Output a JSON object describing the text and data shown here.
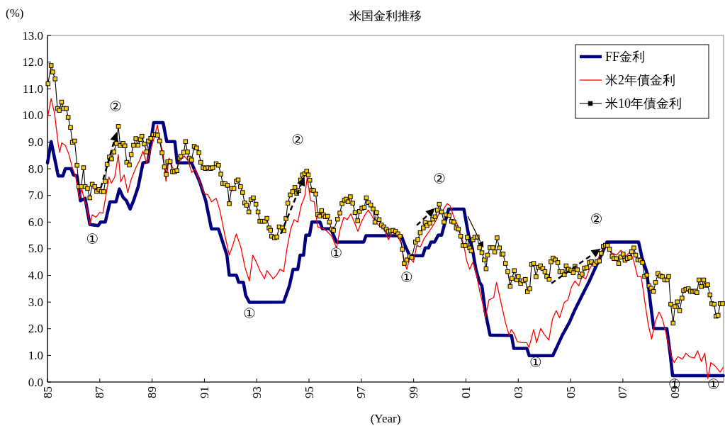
{
  "chart_data": {
    "type": "line",
    "title": "米国金利推移",
    "ylabel": "(%)",
    "xlabel": "(Year)",
    "xlim": [
      1985,
      2010.85
    ],
    "ylim": [
      0,
      13
    ],
    "xticks": [
      {
        "value": 1985,
        "label": "85"
      },
      {
        "value": 1987,
        "label": "87"
      },
      {
        "value": 1989,
        "label": "89"
      },
      {
        "value": 1991,
        "label": "91"
      },
      {
        "value": 1993,
        "label": "93"
      },
      {
        "value": 1995,
        "label": "95"
      },
      {
        "value": 1997,
        "label": "97"
      },
      {
        "value": 1999,
        "label": "99"
      },
      {
        "value": 2001,
        "label": "01"
      },
      {
        "value": 2003,
        "label": "03"
      },
      {
        "value": 2005,
        "label": "05"
      },
      {
        "value": 2007,
        "label": "07"
      },
      {
        "value": 2009,
        "label": "09"
      }
    ],
    "yticks": [
      {
        "value": 0,
        "label": "0.0"
      },
      {
        "value": 1,
        "label": "1.0"
      },
      {
        "value": 2,
        "label": "2.0"
      },
      {
        "value": 3,
        "label": "3.0"
      },
      {
        "value": 4,
        "label": "4.0"
      },
      {
        "value": 5,
        "label": "5.0"
      },
      {
        "value": 6,
        "label": "6.0"
      },
      {
        "value": 7,
        "label": "7.0"
      },
      {
        "value": 8,
        "label": "8.0"
      },
      {
        "value": 9,
        "label": "9.0"
      },
      {
        "value": 10,
        "label": "10.0"
      },
      {
        "value": 11,
        "label": "11.0"
      },
      {
        "value": 12,
        "label": "12.0"
      },
      {
        "value": 13,
        "label": "13.0"
      }
    ],
    "legend": "top right",
    "grid": false,
    "series": [
      {
        "name": "FF金利",
        "color": "#000080",
        "marker": "none",
        "x": [
          1985.0,
          1985.14,
          1985.32,
          1985.41,
          1985.59,
          1985.68,
          1985.9,
          1985.99,
          1986.13,
          1986.26,
          1986.44,
          1986.62,
          1986.94,
          1987.03,
          1987.21,
          1987.39,
          1987.62,
          1987.75,
          1987.89,
          1988.02,
          1988.16,
          1988.29,
          1988.47,
          1988.65,
          1988.84,
          1989.06,
          1989.42,
          1989.56,
          1989.87,
          1989.96,
          1990.51,
          1990.82,
          1991.05,
          1991.27,
          1991.54,
          1991.86,
          1991.95,
          1992.22,
          1992.31,
          1992.49,
          1992.58,
          1992.72,
          1994.03,
          1994.25,
          1994.39,
          1994.57,
          1994.66,
          1994.79,
          1994.88,
          1995.02,
          1995.11,
          1995.42,
          1995.51,
          1995.83,
          1996.05,
          1997.09,
          1997.18,
          1998.53,
          1998.67,
          1998.85,
          1999.35,
          1999.44,
          1999.57,
          1999.66,
          1999.8,
          1999.94,
          2000.07,
          2000.2,
          2000.34,
          2000.92,
          2001.1,
          2001.24,
          2001.38,
          2001.52,
          2001.61,
          2001.74,
          2001.92,
          2002.74,
          2002.83,
          2003.33,
          2003.42,
          2004.32,
          2004.45,
          2004.68,
          2004.95,
          2005.17,
          2005.44,
          2005.72,
          2005.94,
          2006.17,
          2006.39,
          2007.6,
          2007.73,
          2007.91,
          2008.05,
          2008.18,
          2008.68,
          2008.81,
          2008.9,
          2010.84
        ],
        "values": [
          8.22,
          9.02,
          8.17,
          7.73,
          7.73,
          8.0,
          8.0,
          7.77,
          7.73,
          6.8,
          6.89,
          5.91,
          5.87,
          6.0,
          6.0,
          6.76,
          6.76,
          7.24,
          6.93,
          6.8,
          6.49,
          6.8,
          7.33,
          8.22,
          8.26,
          9.73,
          9.73,
          9.02,
          9.02,
          8.22,
          8.22,
          7.51,
          6.8,
          5.74,
          5.74,
          4.76,
          4.01,
          4.01,
          3.74,
          3.74,
          3.25,
          2.99,
          3.0,
          3.61,
          4.23,
          4.23,
          4.76,
          4.76,
          5.51,
          5.51,
          6.0,
          6.0,
          5.75,
          5.75,
          5.25,
          5.25,
          5.49,
          5.49,
          5.12,
          4.74,
          4.74,
          5.03,
          5.03,
          5.25,
          5.25,
          5.51,
          5.51,
          6.0,
          6.49,
          6.49,
          5.51,
          5.03,
          4.23,
          3.74,
          3.61,
          2.63,
          1.76,
          1.75,
          1.26,
          1.26,
          0.99,
          0.99,
          1.26,
          1.75,
          2.23,
          2.72,
          3.25,
          3.79,
          4.27,
          4.76,
          5.25,
          5.25,
          4.67,
          4.14,
          2.99,
          2.01,
          2.01,
          1.04,
          0.24,
          0.24
        ]
      },
      {
        "name": "米2年債金利",
        "color": "#ff0000",
        "marker": "none",
        "x": [
          1985.0,
          1985.14,
          1985.27,
          1985.41,
          1985.47,
          1985.54,
          1985.68,
          1985.81,
          1985.95,
          1986.08,
          1986.22,
          1986.31,
          1986.4,
          1986.53,
          1986.62,
          1986.71,
          1986.85,
          1986.99,
          1987.12,
          1987.26,
          1987.35,
          1987.44,
          1987.57,
          1987.71,
          1987.8,
          1987.93,
          1988.07,
          1988.2,
          1988.38,
          1988.52,
          1988.65,
          1988.79,
          1988.97,
          1989.11,
          1989.2,
          1989.33,
          1989.42,
          1989.53,
          1989.65,
          1989.78,
          1989.92,
          1990.05,
          1990.23,
          1990.37,
          1990.52,
          1990.64,
          1990.82,
          1991.0,
          1991.14,
          1991.27,
          1991.45,
          1991.59,
          1991.77,
          1991.95,
          1992.08,
          1992.22,
          1992.4,
          1992.56,
          1992.72,
          1992.85,
          1992.99,
          1993.12,
          1993.3,
          1993.39,
          1993.57,
          1993.62,
          1993.76,
          1993.89,
          1994.03,
          1994.16,
          1994.3,
          1994.43,
          1994.57,
          1994.7,
          1994.84,
          1994.93,
          1995.06,
          1995.2,
          1995.33,
          1995.51,
          1995.69,
          1995.87,
          1996.05,
          1996.19,
          1996.33,
          1996.46,
          1996.6,
          1996.73,
          1996.87,
          1997.0,
          1997.14,
          1997.27,
          1997.41,
          1997.55,
          1997.68,
          1997.86,
          1998.04,
          1998.18,
          1998.36,
          1998.53,
          1998.62,
          1998.74,
          1998.85,
          1998.99,
          1999.12,
          1999.26,
          1999.4,
          1999.53,
          1999.71,
          1999.85,
          1999.99,
          2000.12,
          2000.28,
          2000.39,
          2000.54,
          2000.67,
          2000.8,
          2000.94,
          2001.02,
          2001.14,
          2001.26,
          2001.38,
          2001.52,
          2001.65,
          2001.74,
          2001.88,
          2002.06,
          2002.17,
          2002.28,
          2002.51,
          2002.65,
          2002.73,
          2002.83,
          2002.96,
          2003.14,
          2003.32,
          2003.41,
          2003.59,
          2003.7,
          2003.86,
          2003.99,
          2004.17,
          2004.31,
          2004.45,
          2004.58,
          2004.76,
          2004.9,
          2005.03,
          2005.17,
          2005.31,
          2005.44,
          2005.58,
          2005.72,
          2005.85,
          2006.03,
          2006.21,
          2006.39,
          2006.57,
          2006.75,
          2006.93,
          2007.11,
          2007.29,
          2007.43,
          2007.56,
          2007.7,
          2007.83,
          2007.97,
          2008.1,
          2008.24,
          2008.38,
          2008.51,
          2008.65,
          2008.83,
          2008.96,
          2009.1,
          2009.28,
          2009.41,
          2009.55,
          2009.73,
          2009.86,
          2010.0,
          2010.13,
          2010.25,
          2010.36,
          2010.54,
          2010.72,
          2010.83
        ],
        "values": [
          9.9,
          10.63,
          10.08,
          8.93,
          8.62,
          8.97,
          8.88,
          8.57,
          8.04,
          7.69,
          6.89,
          7.24,
          6.89,
          6.45,
          5.91,
          6.27,
          6.18,
          6.36,
          6.34,
          7.15,
          7.69,
          7.46,
          7.69,
          8.53,
          7.51,
          7.77,
          7.11,
          7.6,
          8.04,
          8.31,
          8.66,
          8.22,
          8.79,
          9.28,
          9.64,
          8.93,
          8.57,
          7.53,
          8.4,
          8.04,
          7.91,
          8.31,
          8.48,
          8.31,
          7.86,
          8.0,
          7.51,
          7.07,
          7.02,
          6.76,
          6.89,
          6.45,
          5.56,
          4.76,
          5.12,
          5.56,
          5.03,
          4.27,
          3.79,
          4.76,
          4.49,
          4.18,
          3.87,
          4.18,
          3.96,
          3.87,
          4.01,
          4.23,
          4.14,
          5.03,
          5.74,
          6.09,
          6.0,
          6.62,
          6.98,
          7.69,
          6.8,
          6.76,
          5.82,
          5.78,
          5.65,
          5.47,
          5.03,
          5.74,
          6.18,
          6.09,
          6.31,
          6.0,
          5.65,
          6.0,
          6.27,
          6.45,
          6.22,
          6.0,
          5.87,
          5.74,
          5.34,
          5.65,
          5.51,
          5.2,
          4.58,
          4.23,
          4.67,
          4.49,
          5.12,
          5.07,
          5.38,
          5.56,
          5.82,
          6.05,
          6.36,
          6.45,
          6.69,
          6.62,
          6.18,
          5.91,
          5.56,
          5.03,
          4.58,
          4.23,
          4.49,
          4.14,
          3.43,
          2.9,
          2.41,
          3.08,
          3.17,
          3.74,
          3.25,
          2.23,
          1.75,
          1.97,
          1.84,
          1.52,
          1.48,
          1.48,
          1.3,
          1.97,
          1.48,
          2.01,
          1.79,
          1.57,
          2.37,
          2.68,
          2.41,
          2.99,
          3.08,
          3.56,
          3.79,
          3.61,
          3.96,
          3.87,
          4.23,
          4.45,
          4.58,
          4.94,
          5.12,
          4.85,
          4.76,
          4.94,
          4.72,
          4.89,
          4.49,
          3.96,
          3.96,
          3.08,
          2.15,
          1.61,
          2.28,
          2.63,
          2.37,
          1.84,
          1.04,
          0.73,
          0.95,
          0.86,
          1.08,
          0.95,
          0.9,
          1.17,
          0.77,
          1.08,
          0.13,
          0.73,
          0.59,
          0.37,
          0.55
        ]
      },
      {
        "name": "米10年債金利",
        "color": "#000000",
        "marker": "square",
        "x": [
          1985.02,
          1985.14,
          1985.2,
          1985.29,
          1985.38,
          1985.45,
          1985.54,
          1985.61,
          1985.72,
          1985.79,
          1985.88,
          1985.95,
          1986.04,
          1986.13,
          1986.2,
          1986.29,
          1986.38,
          1986.44,
          1986.53,
          1986.62,
          1986.71,
          1986.81,
          1986.88,
          1986.97,
          1987.06,
          1987.15,
          1987.21,
          1987.28,
          1987.37,
          1987.45,
          1987.54,
          1987.63,
          1987.71,
          1987.78,
          1987.89,
          1987.96,
          1988.03,
          1988.13,
          1988.2,
          1988.29,
          1988.38,
          1988.46,
          1988.55,
          1988.61,
          1988.7,
          1988.79,
          1988.86,
          1988.95,
          1989.04,
          1989.13,
          1989.21,
          1989.29,
          1989.38,
          1989.47,
          1989.54,
          1989.6,
          1989.69,
          1989.78,
          1989.86,
          1989.95,
          1990.04,
          1990.1,
          1990.21,
          1990.28,
          1990.35,
          1990.42,
          1990.51,
          1990.61,
          1990.7,
          1990.79,
          1990.86,
          1990.95,
          1991.04,
          1991.14,
          1991.24,
          1991.32,
          1991.45,
          1991.54,
          1991.63,
          1991.7,
          1991.79,
          1991.88,
          1991.95,
          1992.04,
          1992.13,
          1992.22,
          1992.29,
          1992.38,
          1992.46,
          1992.54,
          1992.61,
          1992.7,
          1992.78,
          1992.87,
          1992.97,
          1993.05,
          1993.12,
          1993.21,
          1993.3,
          1993.39,
          1993.47,
          1993.53,
          1993.57,
          1993.68,
          1993.77,
          1993.86,
          1993.98,
          1994.04,
          1994.12,
          1994.19,
          1994.28,
          1994.37,
          1994.46,
          1994.53,
          1994.61,
          1994.68,
          1994.75,
          1994.84,
          1994.91,
          1994.97,
          1995.03,
          1995.11,
          1995.18,
          1995.26,
          1995.33,
          1995.41,
          1995.48,
          1995.55,
          1995.62,
          1995.71,
          1995.78,
          1995.86,
          1995.94,
          1996.09,
          1996.18,
          1996.26,
          1996.35,
          1996.42,
          1996.49,
          1996.58,
          1996.67,
          1996.76,
          1996.86,
          1996.93,
          1997.02,
          1997.11,
          1997.19,
          1997.27,
          1997.36,
          1997.45,
          1997.52,
          1997.58,
          1997.68,
          1997.77,
          1997.86,
          1997.95,
          1998.03,
          1998.12,
          1998.21,
          1998.31,
          1998.4,
          1998.48,
          1998.57,
          1998.64,
          1998.74,
          1998.85,
          1998.93,
          1999.07,
          1999.16,
          1999.25,
          1999.37,
          1999.44,
          1999.51,
          1999.62,
          1999.73,
          1999.82,
          1999.91,
          1999.98,
          2000.07,
          2000.16,
          2000.24,
          2000.36,
          2000.45,
          2000.54,
          2000.63,
          2000.71,
          2000.8,
          2000.89,
          2000.97,
          2001.05,
          2001.14,
          2001.2,
          2001.27,
          2001.34,
          2001.43,
          2001.52,
          2001.61,
          2001.7,
          2001.77,
          2001.83,
          2001.92,
          2002.03,
          2002.1,
          2002.19,
          2002.28,
          2002.37,
          2002.42,
          2002.51,
          2002.6,
          2002.69,
          2002.76,
          2002.85,
          2002.94,
          2003.0,
          2003.09,
          2003.18,
          2003.27,
          2003.35,
          2003.44,
          2003.51,
          2003.59,
          2003.68,
          2003.76,
          2003.85,
          2003.94,
          2004.02,
          2004.09,
          2004.18,
          2004.25,
          2004.33,
          2004.42,
          2004.51,
          2004.59,
          2004.68,
          2004.76,
          2004.83,
          2004.92,
          2005.01,
          2005.1,
          2005.17,
          2005.26,
          2005.35,
          2005.44,
          2005.53,
          2005.62,
          2005.72,
          2005.8,
          2005.92,
          2006.01,
          2006.1,
          2006.17,
          2006.25,
          2006.33,
          2006.41,
          2006.49,
          2006.59,
          2006.66,
          2006.75,
          2006.84,
          2006.92,
          2007.01,
          2007.08,
          2007.17,
          2007.26,
          2007.33,
          2007.42,
          2007.49,
          2007.57,
          2007.66,
          2007.75,
          2007.83,
          2007.92,
          2008.0,
          2008.08,
          2008.17,
          2008.25,
          2008.34,
          2008.43,
          2008.51,
          2008.6,
          2008.69,
          2008.75,
          2008.83,
          2008.92,
          2008.99,
          2009.08,
          2009.17,
          2009.26,
          2009.32,
          2009.41,
          2009.5,
          2009.58,
          2009.67,
          2009.76,
          2009.83,
          2009.91,
          2010.0,
          2010.09,
          2010.17,
          2010.24,
          2010.33,
          2010.4,
          2010.49,
          2010.56,
          2010.64,
          2010.72,
          2010.81
        ],
        "values": [
          11.19,
          11.87,
          11.63,
          11.37,
          10.26,
          10.19,
          10.5,
          10.26,
          10.26,
          9.93,
          9.55,
          8.99,
          9.04,
          8.13,
          7.33,
          7.33,
          8.04,
          7.33,
          7.26,
          6.91,
          7.42,
          7.33,
          7.15,
          7.22,
          7.15,
          7.14,
          7.53,
          8.17,
          8.44,
          8.37,
          8.63,
          8.95,
          9.59,
          8.87,
          8.95,
          8.86,
          8.24,
          8.14,
          8.53,
          8.88,
          9.13,
          8.88,
          9.1,
          9.22,
          8.93,
          8.63,
          9.04,
          9.14,
          9.28,
          9.28,
          9.26,
          9.04,
          8.6,
          8.07,
          7.79,
          8.26,
          8.27,
          7.89,
          7.89,
          7.93,
          8.4,
          8.47,
          8.62,
          9.02,
          8.63,
          8.4,
          8.33,
          8.84,
          8.78,
          8.6,
          8.24,
          8.04,
          8.01,
          8.04,
          8.01,
          8.04,
          8.19,
          8.13,
          7.8,
          7.45,
          7.44,
          7.38,
          6.69,
          7.26,
          7.26,
          7.53,
          7.58,
          7.33,
          7.11,
          6.72,
          6.63,
          6.38,
          6.84,
          6.91,
          6.67,
          6.38,
          6.03,
          6.03,
          6.03,
          6.14,
          5.78,
          5.69,
          5.47,
          5.41,
          5.44,
          5.82,
          5.78,
          5.67,
          6.13,
          6.71,
          7.02,
          7.14,
          7.3,
          7.08,
          7.18,
          7.58,
          7.77,
          7.82,
          7.91,
          7.77,
          7.57,
          7.2,
          7.18,
          7.05,
          6.29,
          6.22,
          6.43,
          6.27,
          6.2,
          6.22,
          6.0,
          5.74,
          5.69,
          6.11,
          6.34,
          6.69,
          6.82,
          6.86,
          6.76,
          6.95,
          6.71,
          6.36,
          6.05,
          6.4,
          6.52,
          6.55,
          6.91,
          6.73,
          6.64,
          6.49,
          6.0,
          6.36,
          6.09,
          5.89,
          5.82,
          5.74,
          5.65,
          5.67,
          5.69,
          5.65,
          5.56,
          5.47,
          4.98,
          4.45,
          4.58,
          4.72,
          4.67,
          5.25,
          5.34,
          5.6,
          5.78,
          5.98,
          5.87,
          5.96,
          6.11,
          6.2,
          6.45,
          6.67,
          6.38,
          6.0,
          6.27,
          6.25,
          6.03,
          6.0,
          5.78,
          5.74,
          5.47,
          5.12,
          5.12,
          5.43,
          5.03,
          4.92,
          5.34,
          5.43,
          5.44,
          5.04,
          4.85,
          4.58,
          4.25,
          4.76,
          5.04,
          5.04,
          4.88,
          5.41,
          5.03,
          4.8,
          4.8,
          4.45,
          4.14,
          3.59,
          3.89,
          4.18,
          3.83,
          3.96,
          3.7,
          3.8,
          3.85,
          3.39,
          3.5,
          4.41,
          4.45,
          3.95,
          4.3,
          4.36,
          4.26,
          4.14,
          3.96,
          3.85,
          4.51,
          4.65,
          4.58,
          4.48,
          4.14,
          4.14,
          4.02,
          4.36,
          4.23,
          4.18,
          4.1,
          4.34,
          4.21,
          3.96,
          4.05,
          4.27,
          4.29,
          4.48,
          4.51,
          4.42,
          4.51,
          4.54,
          4.83,
          5.09,
          5.13,
          5.12,
          4.98,
          4.72,
          4.63,
          4.63,
          4.45,
          4.69,
          4.8,
          4.57,
          4.63,
          4.67,
          4.89,
          5.03,
          4.76,
          4.58,
          4.57,
          4.48,
          3.96,
          4.01,
          3.61,
          3.52,
          3.4,
          3.74,
          4.07,
          3.98,
          3.95,
          3.83,
          3.83,
          3.96,
          2.92,
          2.21,
          2.83,
          3.01,
          2.68,
          3.15,
          3.43,
          3.48,
          3.5,
          3.41,
          3.39,
          3.41,
          3.36,
          3.83,
          3.58,
          3.83,
          3.63,
          3.65,
          3.27,
          2.94,
          2.92,
          2.47,
          2.5,
          2.94,
          2.94
        ]
      }
    ],
    "annotations": [
      "①",
      {
        "text": "②",
        "x": 1987.71,
        "y": 9.59
      },
      "①",
      {
        "text": "②",
        "x": 1994.91,
        "y": 7.91
      },
      "①",
      "①",
      {
        "text": "②",
        "x": 1999.98,
        "y": 6.67
      },
      "①",
      {
        "text": "②",
        "x": 2006.33,
        "y": 5.13
      },
      "①",
      "①"
    ]
  }
}
